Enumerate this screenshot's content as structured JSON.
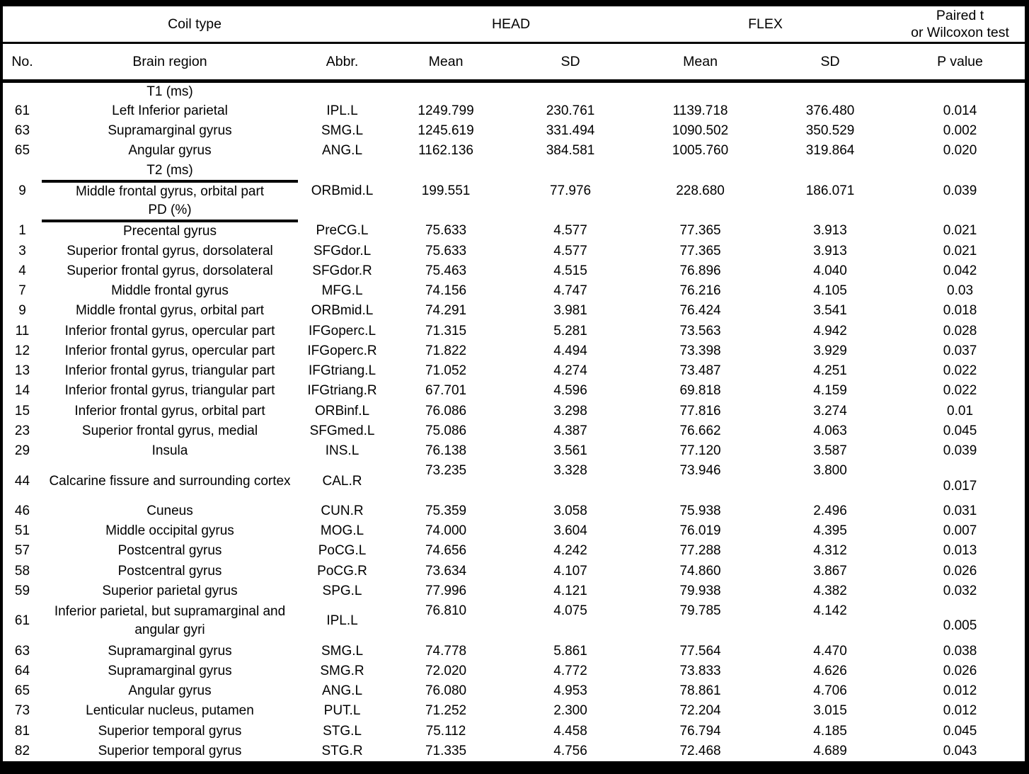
{
  "colors": {
    "text": "#000000",
    "background": "#ffffff",
    "border": "#000000"
  },
  "table": {
    "header": {
      "coil_type": "Coil type",
      "head": "HEAD",
      "flex": "FLEX",
      "test_line1": "Paired t",
      "test_line2": "or Wilcoxon test",
      "columns": [
        "No.",
        "Brain region",
        "Abbr.",
        "Mean",
        "SD",
        "Mean",
        "SD",
        "P value"
      ]
    },
    "rows": [
      {
        "section": "T1 (ms)",
        "underline": false
      },
      {
        "no": "61",
        "region": "Left Inferior parietal",
        "abbr": "IPL.L",
        "head_mean": "1249.799",
        "head_sd": "230.761",
        "flex_mean": "1139.718",
        "flex_sd": "376.480",
        "p": "0.014"
      },
      {
        "no": "63",
        "region": "Supramarginal gyrus",
        "abbr": "SMG.L",
        "head_mean": "1245.619",
        "head_sd": "331.494",
        "flex_mean": "1090.502",
        "flex_sd": "350.529",
        "p": "0.002"
      },
      {
        "no": "65",
        "region": "Angular gyrus",
        "abbr": "ANG.L",
        "head_mean": "1162.136",
        "head_sd": "384.581",
        "flex_mean": "1005.760",
        "flex_sd": "319.864",
        "p": "0.020"
      },
      {
        "section": "T2 (ms)",
        "underline": true
      },
      {
        "no": "9",
        "region": "Middle frontal gyrus, orbital part",
        "abbr": "ORBmid.L",
        "head_mean": "199.551",
        "head_sd": "77.976",
        "flex_mean": "228.680",
        "flex_sd": "186.071",
        "p": "0.039"
      },
      {
        "section": "PD (%)",
        "underline": true
      },
      {
        "no": "1",
        "region": "Precental gyrus",
        "abbr": "PreCG.L",
        "head_mean": "75.633",
        "head_sd": "4.577",
        "flex_mean": "77.365",
        "flex_sd": "3.913",
        "p": "0.021"
      },
      {
        "no": "3",
        "region": "Superior frontal gyrus, dorsolateral",
        "abbr": "SFGdor.L",
        "head_mean": "75.633",
        "head_sd": "4.577",
        "flex_mean": "77.365",
        "flex_sd": "3.913",
        "p": "0.021"
      },
      {
        "no": "4",
        "region": "Superior frontal gyrus, dorsolateral",
        "abbr": "SFGdor.R",
        "head_mean": "75.463",
        "head_sd": "4.515",
        "flex_mean": "76.896",
        "flex_sd": "4.040",
        "p": "0.042"
      },
      {
        "no": "7",
        "region": "Middle frontal gyrus",
        "abbr": "MFG.L",
        "head_mean": "74.156",
        "head_sd": "4.747",
        "flex_mean": "76.216",
        "flex_sd": "4.105",
        "p": "0.03"
      },
      {
        "no": "9",
        "region": "Middle frontal gyrus, orbital part",
        "abbr": "ORBmid.L",
        "head_mean": "74.291",
        "head_sd": "3.981",
        "flex_mean": "76.424",
        "flex_sd": "3.541",
        "p": "0.018"
      },
      {
        "no": "11",
        "region": "Inferior frontal gyrus, opercular part",
        "abbr": "IFGoperc.L",
        "head_mean": "71.315",
        "head_sd": "5.281",
        "flex_mean": "73.563",
        "flex_sd": "4.942",
        "p": "0.028"
      },
      {
        "no": "12",
        "region": "Inferior frontal gyrus, opercular part",
        "abbr": "IFGoperc.R",
        "head_mean": "71.822",
        "head_sd": "4.494",
        "flex_mean": "73.398",
        "flex_sd": "3.929",
        "p": "0.037"
      },
      {
        "no": "13",
        "region": "Inferior frontal gyrus, triangular part",
        "abbr": "IFGtriang.L",
        "head_mean": "71.052",
        "head_sd": "4.274",
        "flex_mean": "73.487",
        "flex_sd": "4.251",
        "p": "0.022"
      },
      {
        "no": "14",
        "region": "Inferior frontal gyrus, triangular part",
        "abbr": "IFGtriang.R",
        "head_mean": "67.701",
        "head_sd": "4.596",
        "flex_mean": "69.818",
        "flex_sd": "4.159",
        "p": "0.022"
      },
      {
        "no": "15",
        "region": "Inferior frontal gyrus, orbital part",
        "abbr": "ORBinf.L",
        "head_mean": "76.086",
        "head_sd": "3.298",
        "flex_mean": "77.816",
        "flex_sd": "3.274",
        "p": "0.01"
      },
      {
        "no": "23",
        "region": "Superior frontal gyrus, medial",
        "abbr": "SFGmed.L",
        "head_mean": "75.086",
        "head_sd": "4.387",
        "flex_mean": "76.662",
        "flex_sd": "4.063",
        "p": "0.045"
      },
      {
        "no": "29",
        "region": "Insula",
        "abbr": "INS.L",
        "head_mean": "76.138",
        "head_sd": "3.561",
        "flex_mean": "77.120",
        "flex_sd": "3.587",
        "p": "0.039"
      },
      {
        "no": "44",
        "region": "Calcarine fissure and surrounding cortex",
        "abbr": "CAL.R",
        "head_mean": "73.235",
        "head_sd": "3.328",
        "flex_mean": "73.946",
        "flex_sd": "3.800",
        "p": "0.017",
        "tall": true
      },
      {
        "no": "46",
        "region": "Cuneus",
        "abbr": "CUN.R",
        "head_mean": "75.359",
        "head_sd": "3.058",
        "flex_mean": "75.938",
        "flex_sd": "2.496",
        "p": "0.031"
      },
      {
        "no": "51",
        "region": "Middle occipital gyrus",
        "abbr": "MOG.L",
        "head_mean": "74.000",
        "head_sd": "3.604",
        "flex_mean": "76.019",
        "flex_sd": "4.395",
        "p": "0.007"
      },
      {
        "no": "57",
        "region": "Postcentral gyrus",
        "abbr": "PoCG.L",
        "head_mean": "74.656",
        "head_sd": "4.242",
        "flex_mean": "77.288",
        "flex_sd": "4.312",
        "p": "0.013"
      },
      {
        "no": "58",
        "region": "Postcentral gyrus",
        "abbr": "PoCG.R",
        "head_mean": "73.634",
        "head_sd": "4.107",
        "flex_mean": "74.860",
        "flex_sd": "3.867",
        "p": "0.026"
      },
      {
        "no": "59",
        "region": "Superior parietal gyrus",
        "abbr": "SPG.L",
        "head_mean": "77.996",
        "head_sd": "4.121",
        "flex_mean": "79.938",
        "flex_sd": "4.382",
        "p": "0.032"
      },
      {
        "no": "61",
        "region": "Inferior parietal, but supramarginal and angular gyri",
        "abbr": "IPL.L",
        "head_mean": "76.810",
        "head_sd": "4.075",
        "flex_mean": "79.785",
        "flex_sd": "4.142",
        "p": "0.005",
        "tall": true
      },
      {
        "no": "63",
        "region": "Supramarginal gyrus",
        "abbr": "SMG.L",
        "head_mean": "74.778",
        "head_sd": "5.861",
        "flex_mean": "77.564",
        "flex_sd": "4.470",
        "p": "0.038"
      },
      {
        "no": "64",
        "region": "Supramarginal gyrus",
        "abbr": "SMG.R",
        "head_mean": "72.020",
        "head_sd": "4.772",
        "flex_mean": "73.833",
        "flex_sd": "4.626",
        "p": "0.026"
      },
      {
        "no": "65",
        "region": "Angular gyrus",
        "abbr": "ANG.L",
        "head_mean": "76.080",
        "head_sd": "4.953",
        "flex_mean": "78.861",
        "flex_sd": "4.706",
        "p": "0.012"
      },
      {
        "no": "73",
        "region": "Lenticular nucleus, putamen",
        "abbr": "PUT.L",
        "head_mean": "71.252",
        "head_sd": "2.300",
        "flex_mean": "72.204",
        "flex_sd": "3.015",
        "p": "0.012"
      },
      {
        "no": "81",
        "region": "Superior temporal gyrus",
        "abbr": "STG.L",
        "head_mean": "75.112",
        "head_sd": "4.458",
        "flex_mean": "76.794",
        "flex_sd": "4.185",
        "p": "0.045"
      },
      {
        "no": "82",
        "region": "Superior temporal gyrus",
        "abbr": "STG.R",
        "head_mean": "71.335",
        "head_sd": "4.756",
        "flex_mean": "72.468",
        "flex_sd": "4.689",
        "p": "0.043"
      }
    ]
  }
}
